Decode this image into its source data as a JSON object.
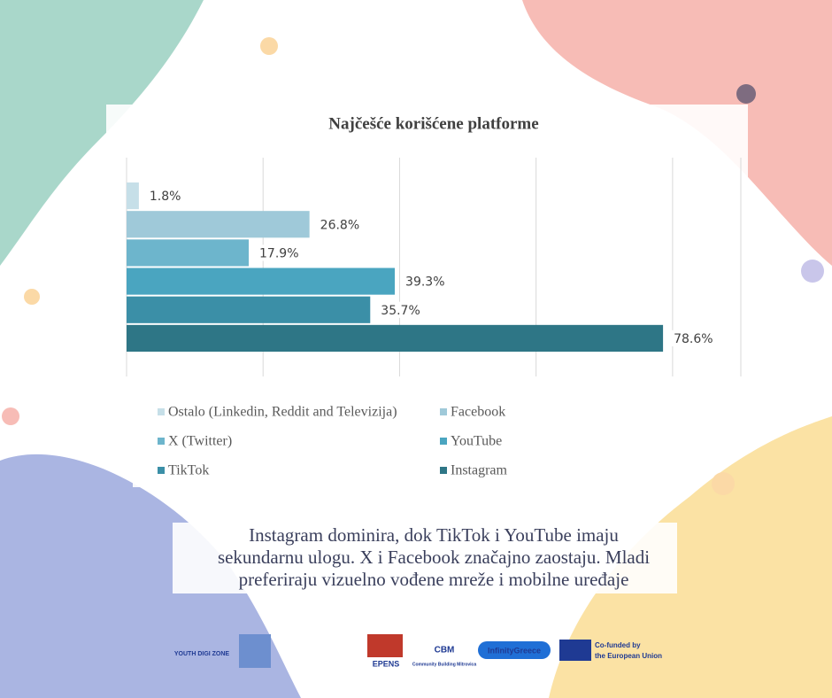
{
  "chart_data": {
    "type": "bar",
    "orientation": "horizontal",
    "title": "Najčešće korišćene platforme",
    "categories": [
      "Ostalo (Linkedin, Reddit and Televizija)",
      "Facebook",
      "X (Twitter)",
      "YouTube",
      "TikTok",
      "Instagram"
    ],
    "values": [
      1.8,
      26.8,
      17.9,
      39.3,
      35.7,
      78.6
    ],
    "value_labels": [
      "1.8%",
      "26.8%",
      "17.9%",
      "39.3%",
      "35.7%",
      "78.6%"
    ],
    "colors": [
      "#c6dfe8",
      "#9fc9d9",
      "#6db5cc",
      "#4aa5c0",
      "#3b8fa7",
      "#2e7686"
    ],
    "xlim": [
      0,
      90
    ],
    "xticks": [
      0,
      20,
      40,
      60,
      80
    ],
    "grid": true,
    "legend": "bottom"
  },
  "caption": [
    "Instagram dominira, dok TikTok i YouTube imaju",
    "sekundarnu ulogu. X i Facebook značajno zaostaju. Mladi",
    "preferiraju vizuelno vođene mreže i mobilne uređaje"
  ],
  "logos": [
    "YOUTH DIGI ZONE",
    "EPENS",
    "CBM",
    "Community Building Mitrovica",
    "InfinityGreece",
    "Co-funded by",
    "the European Union"
  ]
}
